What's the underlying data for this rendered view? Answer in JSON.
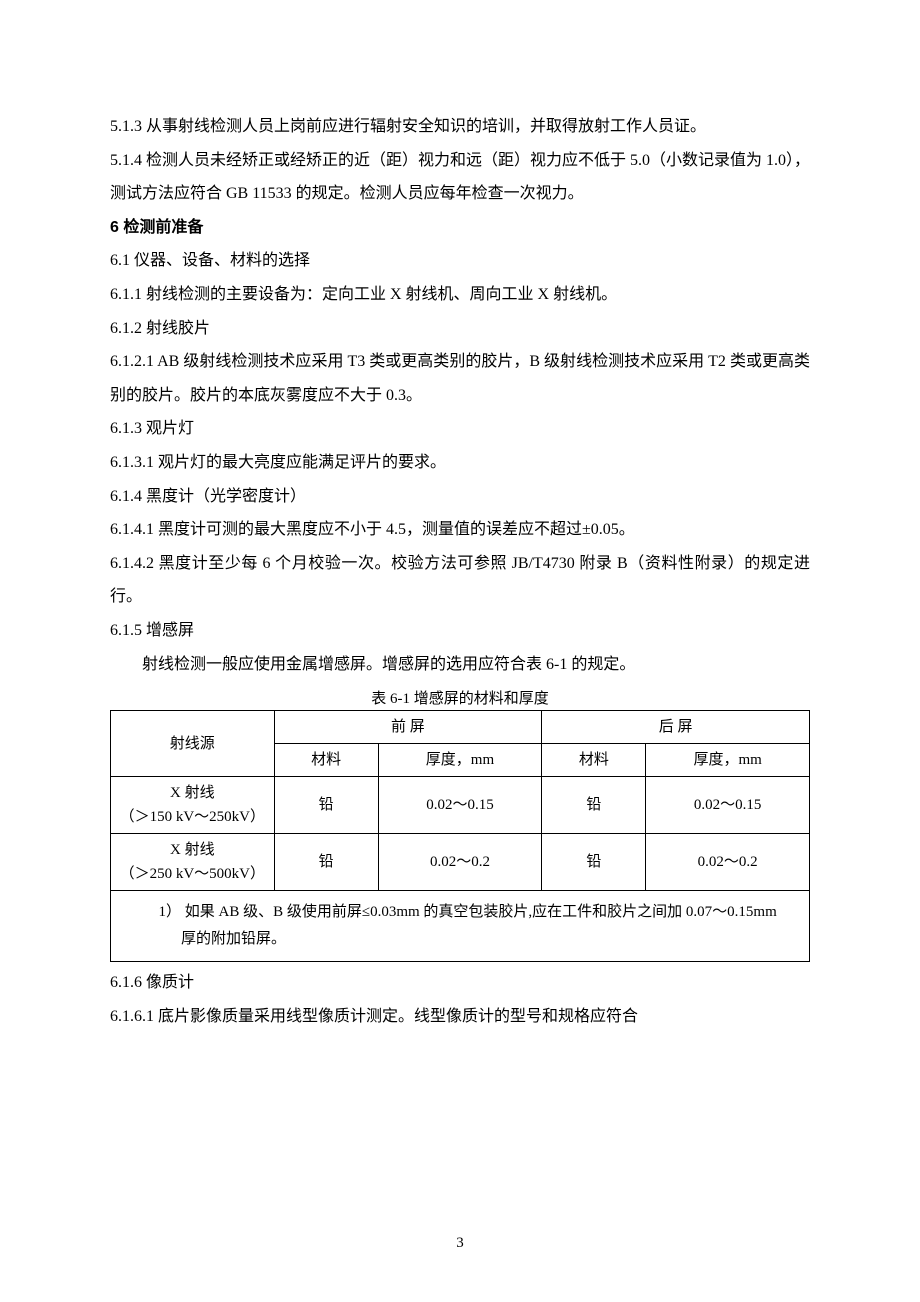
{
  "paragraphs": {
    "p513": "5.1.3 从事射线检测人员上岗前应进行辐射安全知识的培训，并取得放射工作人员证。",
    "p514": "5.1.4 检测人员未经矫正或经矫正的近（距）视力和远（距）视力应不低于 5.0（小数记录值为 1.0），测试方法应符合 GB 11533 的规定。检测人员应每年检查一次视力。",
    "h6": "6 检测前准备",
    "p61": "6.1 仪器、设备、材料的选择",
    "p611": "6.1.1 射线检测的主要设备为：定向工业 X 射线机、周向工业 X 射线机。",
    "p612": "6.1.2 射线胶片",
    "p6121": "6.1.2.1 AB 级射线检测技术应采用 T3 类或更高类别的胶片，B 级射线检测技术应采用 T2 类或更高类别的胶片。胶片的本底灰雾度应不大于 0.3。",
    "p613": "6.1.3 观片灯",
    "p6131": "6.1.3.1 观片灯的最大亮度应能满足评片的要求。",
    "p614": "6.1.4  黑度计（光学密度计）",
    "p6141": "6.1.4.1  黑度计可测的最大黑度应不小于 4.5，测量值的误差应不超过±0.05。",
    "p6142": "6.1.4.2  黑度计至少每 6 个月校验一次。校验方法可参照 JB/T4730 附录 B（资料性附录）的规定进行。",
    "p615": "6.1.5 增感屏",
    "p615body": "射线检测一般应使用金属增感屏。增感屏的选用应符合表 6-1 的规定。",
    "p616": "6.1.6 像质计",
    "p6161": "6.1.6.1 底片影像质量采用线型像质计测定。线型像质计的型号和规格应符合"
  },
  "table": {
    "caption": "表 6-1  增感屏的材料和厚度",
    "head": {
      "source": "射线源",
      "front": "前   屏",
      "back": "后   屏",
      "material": "材料",
      "thickness": "厚度，mm"
    },
    "rows": [
      {
        "source": "X 射线\n（＞150 kV～250kV）",
        "front_material": "铅",
        "front_thickness": "0.02～0.15",
        "back_material": "铅",
        "back_thickness": "0.02～0.15"
      },
      {
        "source": "X 射线\n（＞250 kV～500kV）",
        "front_material": "铅",
        "front_thickness": "0.02～0.2",
        "back_material": "铅",
        "back_thickness": "0.02～0.2"
      }
    ],
    "note": "1）  如果 AB 级、B 级使用前屏≤0.03mm 的真空包装胶片,应在工件和胶片之间加 0.07～0.15mm 厚的附加铅屏。"
  },
  "page_number": "3",
  "styling": {
    "background": "#ffffff",
    "text_color": "#000000",
    "body_font": "SimSun",
    "heading_font": "SimHei",
    "font_size_pt": 12,
    "line_height": 2.1,
    "table_border_color": "#000000",
    "table_border_width": 1.5
  }
}
